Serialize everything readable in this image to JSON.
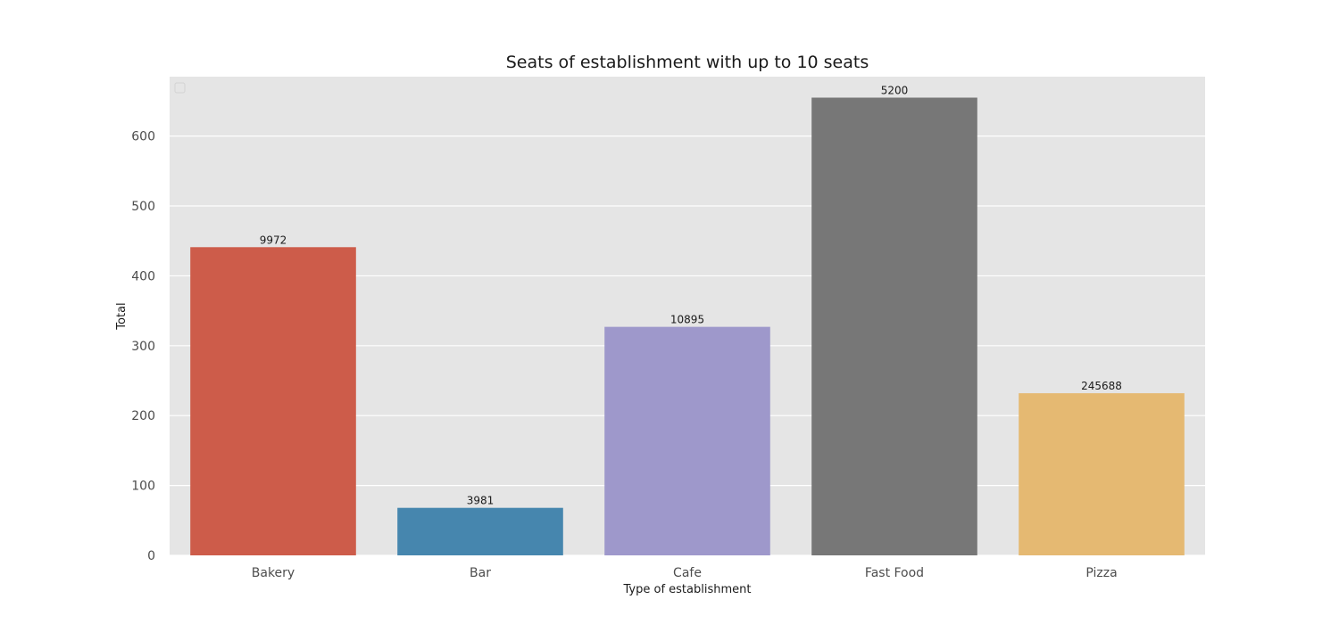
{
  "chart_data": {
    "type": "bar",
    "title": "Seats of establishment with up to 10 seats",
    "xlabel": "Type of establishment",
    "ylabel": "Total",
    "categories": [
      "Bakery",
      "Bar",
      "Cafe",
      "Fast Food",
      "Pizza"
    ],
    "values": [
      441,
      68,
      327,
      655,
      232
    ],
    "bar_labels": [
      "9972",
      "3981",
      "10895",
      "5200",
      "245688"
    ],
    "colors": [
      "#cd5c4a",
      "#4686ae",
      "#9e98cb",
      "#777777",
      "#e5b972"
    ],
    "ylim": [
      0,
      685
    ],
    "yticks": [
      0,
      100,
      200,
      300,
      400,
      500,
      600
    ],
    "grid": true,
    "grid_axis": "y",
    "legend": "top-left, empty",
    "background": "#e5e5e5"
  }
}
